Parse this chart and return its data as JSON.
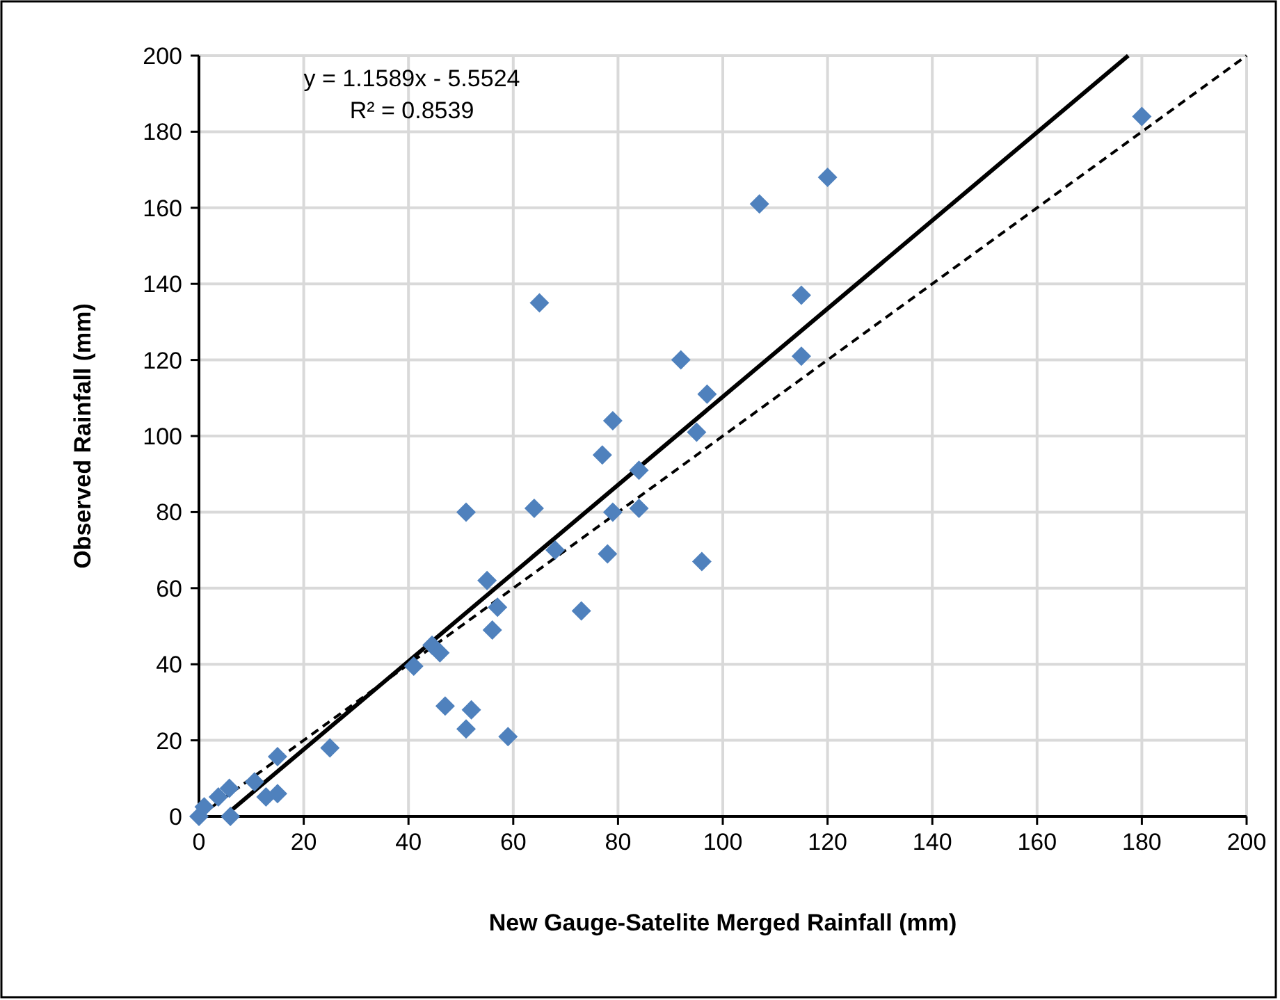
{
  "chart_data": {
    "type": "scatter",
    "xlabel": "New Gauge-Satelite Merged Rainfall (mm)",
    "ylabel": "Observed Rainfall (mm)",
    "annotations": [
      "y = 1.1589x - 5.5524",
      "R² = 0.8539"
    ],
    "xlim": [
      0,
      200
    ],
    "ylim": [
      0,
      200
    ],
    "xticks": [
      0,
      20,
      40,
      60,
      80,
      100,
      120,
      140,
      160,
      180,
      200
    ],
    "yticks": [
      0,
      20,
      40,
      60,
      80,
      100,
      120,
      140,
      160,
      180,
      200
    ],
    "grid": true,
    "series": [
      {
        "color": "#4f81bd",
        "marker": "diamond",
        "x": [
          0,
          1,
          3.7,
          5.8,
          6,
          10.6,
          12.8,
          15,
          15,
          25,
          41,
          44.5,
          46,
          47,
          51,
          52,
          59,
          55,
          57,
          56,
          73,
          51,
          64,
          68,
          78,
          79,
          84,
          84,
          77,
          79,
          95,
          97,
          96,
          92,
          107,
          120,
          115,
          115,
          180,
          65
        ],
        "values": [
          0,
          2.5,
          5.1,
          7.4,
          0,
          9.1,
          5.1,
          15.7,
          6,
          18,
          39.5,
          45,
          43,
          29,
          23,
          28,
          21,
          62,
          55,
          49,
          54,
          80,
          81,
          70,
          69,
          80,
          81,
          91,
          95,
          104,
          101,
          111,
          67,
          120,
          161,
          168,
          137,
          121,
          184,
          135
        ]
      },
      {
        "type": "line",
        "color": "#000000",
        "marker": "none",
        "line_style": "solid",
        "x": [
          4.8,
          177.4
        ],
        "values": [
          0,
          200
        ]
      },
      {
        "type": "line",
        "color": "#000000",
        "marker": "none",
        "line_style": "dashed",
        "x": [
          0,
          200
        ],
        "values": [
          0,
          200
        ]
      }
    ]
  }
}
